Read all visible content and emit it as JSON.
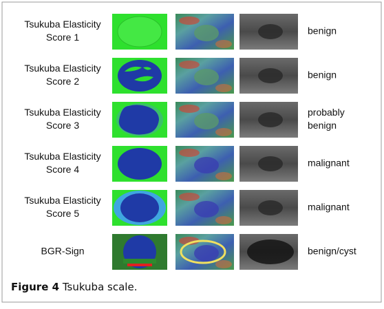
{
  "figure": {
    "rows": [
      {
        "label": [
          "Tsukuba Elasticity",
          "Score 1"
        ],
        "result": [
          "benign"
        ]
      },
      {
        "label": [
          "Tsukuba Elasticity",
          "Score 2"
        ],
        "result": [
          "benign"
        ]
      },
      {
        "label": [
          "Tsukuba Elasticity",
          "Score 3"
        ],
        "result": [
          "probably",
          "benign"
        ]
      },
      {
        "label": [
          "Tsukuba Elasticity",
          "Score 4"
        ],
        "result": [
          "malignant"
        ]
      },
      {
        "label": [
          "Tsukuba Elasticity",
          "Score 5"
        ],
        "result": [
          "malignant"
        ]
      },
      {
        "label": [
          "BGR-Sign"
        ],
        "result": [
          "benign/cyst"
        ]
      }
    ],
    "caption": {
      "number": "Figure 4",
      "text": "Tsukuba scale."
    }
  }
}
